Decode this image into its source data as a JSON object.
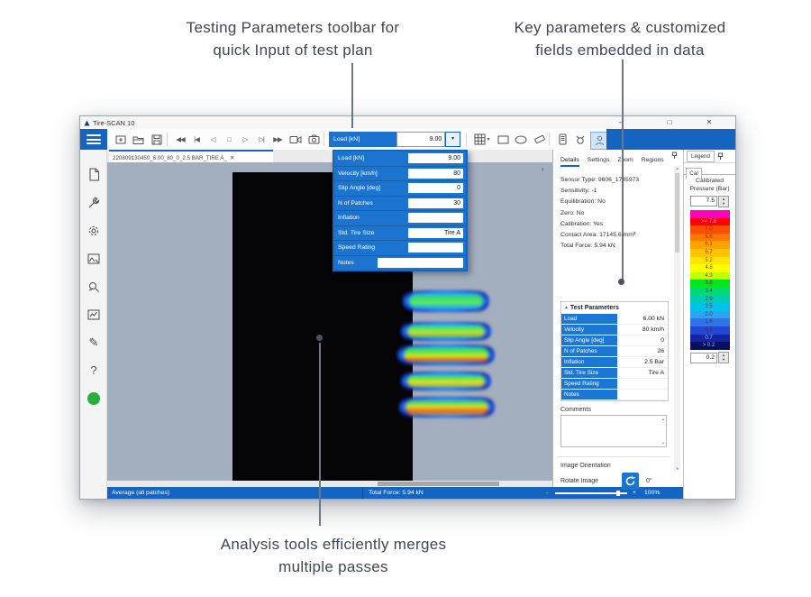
{
  "annotations": {
    "top_left": {
      "line1": "Testing Parameters toolbar for",
      "line2": "quick Input of test plan"
    },
    "top_right": {
      "line1": "Key parameters & customized",
      "line2": "fields embedded in data"
    },
    "bottom": {
      "line1": "Analysis tools efficiently merges",
      "line2": "multiple passes"
    }
  },
  "window": {
    "title": "Tire-SCAN 10",
    "minimize": "–",
    "maximize": "□",
    "close": "✕"
  },
  "toolbar": {
    "load_label": "Load [kN]",
    "load_value": "9.00",
    "dropdown_glyph": "▾",
    "grid_caret": "▾",
    "playback": [
      {
        "name": "rewind-icon",
        "glyph": "◀◀"
      },
      {
        "name": "go-to-start-icon",
        "glyph": "|◀"
      },
      {
        "name": "step-back-icon",
        "glyph": "◁"
      },
      {
        "name": "stop-icon",
        "glyph": "□"
      },
      {
        "name": "play-icon",
        "glyph": "▷"
      },
      {
        "name": "step-forward-icon",
        "glyph": "▷|"
      },
      {
        "name": "fast-forward-icon",
        "glyph": "▶▶"
      }
    ]
  },
  "test_plan_dropdown": {
    "rows": [
      {
        "label": "Load [kN]",
        "value": "9.00",
        "wide": false
      },
      {
        "label": "Velocity [km/h]",
        "value": "80",
        "wide": false
      },
      {
        "label": "Slip Angle [deg]",
        "value": "0",
        "wide": false
      },
      {
        "label": "N of Patches",
        "value": "30",
        "wide": false
      },
      {
        "label": "Inflation",
        "value": "",
        "wide": false
      },
      {
        "label": "Std. Tire Size",
        "value": "Tire A",
        "wide": false
      },
      {
        "label": "Speed Rating",
        "value": "",
        "wide": false
      },
      {
        "label": "Notes",
        "value": "",
        "wide": true
      }
    ]
  },
  "document_tab": {
    "label": "220809130450_6.00_80_0_2.5 BAR_TIRE A_",
    "close": "✕"
  },
  "details_panel": {
    "tabs": [
      "Details",
      "Settings",
      "Zoom",
      "Regions"
    ],
    "active_tab": "Details",
    "info_lines": [
      "Sensor Type: 9606_1745973",
      "Sensitivity: -1",
      "Equilibration: No",
      "Zero: No",
      "Calibration: Yes",
      "Contact Area: 17145.6 mm²",
      "Total Force: 5.94 kN"
    ],
    "test_parameters": {
      "collapse_glyph": "▲",
      "title": "Test Parameters",
      "rows": [
        {
          "label": "Load",
          "value": "6.00 kN"
        },
        {
          "label": "Velocity",
          "value": "80 km/h"
        },
        {
          "label": "Slip Angle [deg]",
          "value": "0"
        },
        {
          "label": "N of Patches",
          "value": "26"
        },
        {
          "label": "Inflation",
          "value": "2.5 Bar"
        },
        {
          "label": "Std. Tire Size",
          "value": "Tire A"
        },
        {
          "label": "Speed Rating",
          "value": ""
        },
        {
          "label": "Notes",
          "value": ""
        }
      ]
    },
    "comments_label": "Comments",
    "image_orientation_label": "Image Orientation",
    "rotate_image_label": "Rotate Image",
    "rotate_value": "0°"
  },
  "legend": {
    "tab_label": "Legend",
    "cal_tab": "Cal",
    "title_line1": "Calibrated",
    "title_line2": "Pressure (Bar)",
    "max_value": "7.5",
    "min_value": "0.2",
    "scale": [
      {
        "color": "#ff00bf",
        "label": ""
      },
      {
        "color": "#ff0000",
        "label": ">= 7.8"
      },
      {
        "color": "#ff4d00",
        "label": "7.0"
      },
      {
        "color": "#ff7800",
        "label": "6.6"
      },
      {
        "color": "#ffa200",
        "label": "6.1"
      },
      {
        "color": "#ffc400",
        "label": "5.7"
      },
      {
        "color": "#ffe600",
        "label": "5.2"
      },
      {
        "color": "#fbff00",
        "label": "4.8"
      },
      {
        "color": "#c3ff00",
        "label": "4.3"
      },
      {
        "color": "#00e621",
        "label": "3.8"
      },
      {
        "color": "#00da75",
        "label": "3.4"
      },
      {
        "color": "#00cdb2",
        "label": "2.9"
      },
      {
        "color": "#00c3e8",
        "label": "2.5"
      },
      {
        "color": "#2fa1f0",
        "label": "2.0"
      },
      {
        "color": "#2e74e8",
        "label": "1.6"
      },
      {
        "color": "#2248d2",
        "label": "1.1"
      },
      {
        "color": "#16259e",
        "label": "0.7"
      },
      {
        "color": "#080f5e",
        "label": "> 0.2"
      }
    ]
  },
  "status_bar": {
    "left": "Average (all patches)",
    "center": "Total Force: 5.94 kN",
    "minus": "-",
    "plus": "+",
    "zoom": "100%"
  }
}
